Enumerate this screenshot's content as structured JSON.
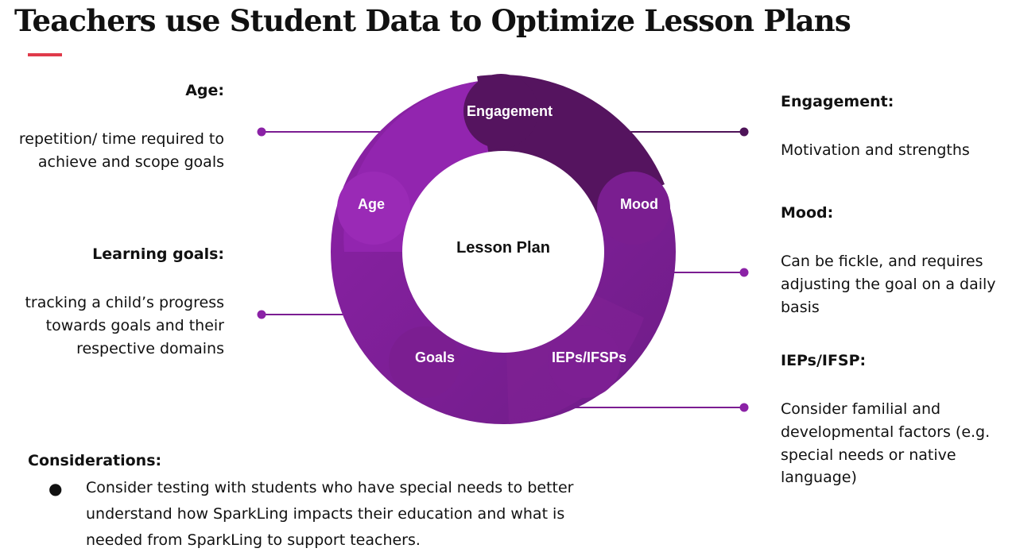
{
  "title": "Teachers use Student Data to Optimize Lesson Plans",
  "colors": {
    "accent": "#e03a4a",
    "purple_light": "#9426b0",
    "purple_mid": "#7c1f93",
    "purple_dark": "#55145f",
    "connector": "#6b1a80"
  },
  "diagram": {
    "center_label": "Lesson Plan",
    "segments": {
      "engagement": "Engagement",
      "mood": "Mood",
      "ieps": "IEPs/IFSPs",
      "goals": "Goals",
      "age": "Age"
    }
  },
  "left": {
    "age": {
      "heading": "Age:",
      "lines": [
        "repetition/ time required to",
        "achieve and scope goals"
      ]
    },
    "learning_goals": {
      "heading": "Learning goals:",
      "lines": [
        "tracking a child’s progress",
        "towards goals and their",
        "respective domains"
      ]
    }
  },
  "right": {
    "engagement": {
      "heading": "Engagement:",
      "lines": [
        "Motivation and strengths"
      ]
    },
    "mood": {
      "heading": "Mood:",
      "lines": [
        "Can be fickle, and requires",
        "adjusting the goal on a daily",
        "basis"
      ]
    },
    "iep": {
      "heading": "IEPs/IFSP:",
      "lines": [
        "Consider familial and",
        "developmental factors (e.g.",
        "special needs or native",
        "language)"
      ]
    }
  },
  "considerations": {
    "heading": "Considerations:",
    "bullet": "●",
    "items": [
      "Consider testing with students who have special needs to better understand how SparkLing impacts their education and what is needed from SparkLing to support teachers."
    ]
  }
}
